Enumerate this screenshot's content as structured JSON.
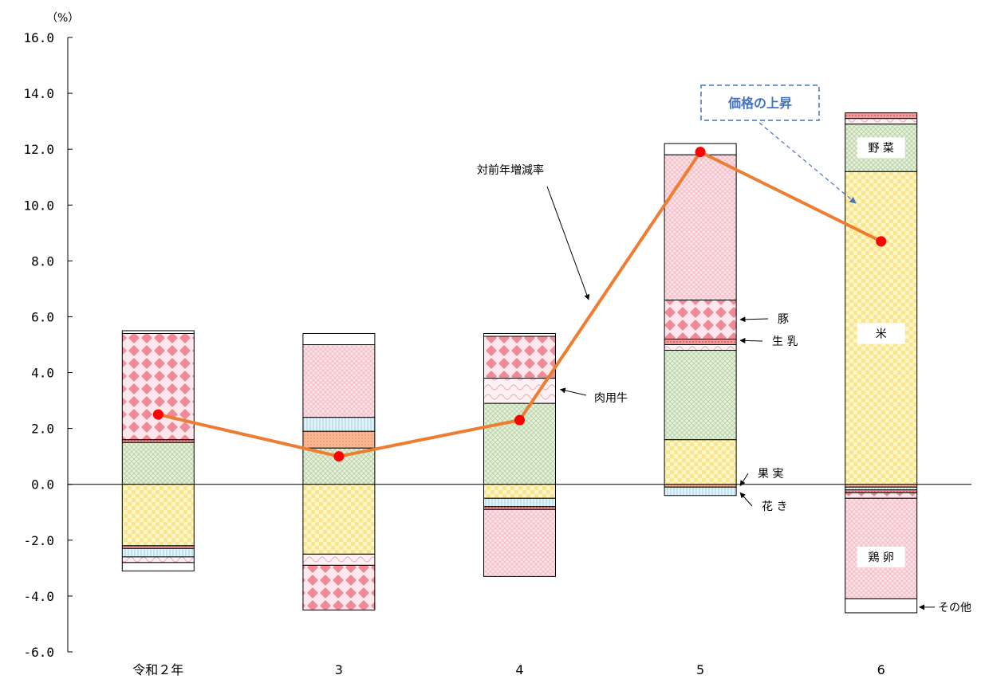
{
  "chart_data": {
    "type": "bar",
    "subtype": "stacked bar with line",
    "y_unit": "（%）",
    "ylim": [
      -6,
      16
    ],
    "y_ticks": [
      "16.0",
      "14.0",
      "12.0",
      "10.0",
      "8.0",
      "6.0",
      "4.0",
      "2.0",
      "0.0",
      "-2.0",
      "-4.0",
      "-6.0"
    ],
    "categories": [
      "令和２年",
      "3",
      "4",
      "5",
      "6"
    ],
    "stacks": [
      {
        "positive": [
          {
            "item": "野菜",
            "value": 1.5
          },
          {
            "item": "生乳",
            "value": 0.1
          },
          {
            "item": "豚",
            "value": 3.8
          },
          {
            "item": "その他",
            "value": 0.1
          }
        ],
        "negative": [
          {
            "item": "米",
            "value": -2.2
          },
          {
            "item": "生乳",
            "value": -0.1
          },
          {
            "item": "花き",
            "value": -0.3
          },
          {
            "item": "肉用牛",
            "value": -0.2
          },
          {
            "item": "その他",
            "value": -0.3
          }
        ]
      },
      {
        "positive": [
          {
            "item": "野菜",
            "value": 1.3
          },
          {
            "item": "果実",
            "value": 0.6
          },
          {
            "item": "花き",
            "value": 0.5
          },
          {
            "item": "鶏卵",
            "value": 2.6
          },
          {
            "item": "その他",
            "value": 0.4
          }
        ],
        "negative": [
          {
            "item": "米",
            "value": -2.5
          },
          {
            "item": "肉用牛",
            "value": -0.4
          },
          {
            "item": "豚",
            "value": -1.6
          }
        ]
      },
      {
        "positive": [
          {
            "item": "野菜",
            "value": 2.9
          },
          {
            "item": "肉用牛",
            "value": 0.9
          },
          {
            "item": "豚",
            "value": 1.5
          },
          {
            "item": "その他",
            "value": 0.1
          }
        ],
        "negative": [
          {
            "item": "米",
            "value": -0.5
          },
          {
            "item": "花き",
            "value": -0.3
          },
          {
            "item": "生乳",
            "value": -0.1
          },
          {
            "item": "鶏卵",
            "value": -2.4
          }
        ]
      },
      {
        "positive": [
          {
            "item": "米",
            "value": 1.6
          },
          {
            "item": "野菜",
            "value": 3.2
          },
          {
            "item": "肉用牛",
            "value": 0.2
          },
          {
            "item": "生乳",
            "value": 0.2
          },
          {
            "item": "豚",
            "value": 1.4
          },
          {
            "item": "鶏卵",
            "value": 5.2
          },
          {
            "item": "その他",
            "value": 0.4
          }
        ],
        "negative": [
          {
            "item": "果実",
            "value": -0.1
          },
          {
            "item": "花き",
            "value": -0.3
          }
        ]
      },
      {
        "positive": [
          {
            "item": "米",
            "value": 11.2
          },
          {
            "item": "野菜",
            "value": 1.7
          },
          {
            "item": "肉用牛",
            "value": 0.2
          },
          {
            "item": "生乳",
            "value": 0.2
          }
        ],
        "negative": [
          {
            "item": "果実",
            "value": -0.1
          },
          {
            "item": "花き",
            "value": -0.1
          },
          {
            "item": "生乳",
            "value": -0.1
          },
          {
            "item": "豚",
            "value": -0.2
          },
          {
            "item": "鶏卵",
            "value": -3.6
          },
          {
            "item": "その他",
            "value": -0.5
          }
        ]
      }
    ],
    "line": {
      "name": "対前年増減率",
      "values": [
        2.5,
        1.0,
        2.3,
        11.9,
        8.7
      ]
    },
    "item_labels": {
      "pig": "豚",
      "milk": "生 乳",
      "beef": "肉用牛",
      "fruit": "果 実",
      "flowers": "花 き",
      "vegetables": "野 菜",
      "rice": "米",
      "eggs": "鶏 卵",
      "other": "その他"
    },
    "annotation": "価格の上昇"
  },
  "colors": {
    "line": "#ed7d31",
    "marker": "#ff0000",
    "callout": "#4472c4",
    "米": "#fbeeaa",
    "野菜": "#dcead0",
    "鶏卵": "#f7d6dc",
    "豚": "#f2a0aa",
    "肉用牛": "#fbe7ea",
    "生乳": "#f08a8a",
    "花き": "#d9edf6",
    "果実": "#f5b58e",
    "その他": "#ffffff"
  }
}
